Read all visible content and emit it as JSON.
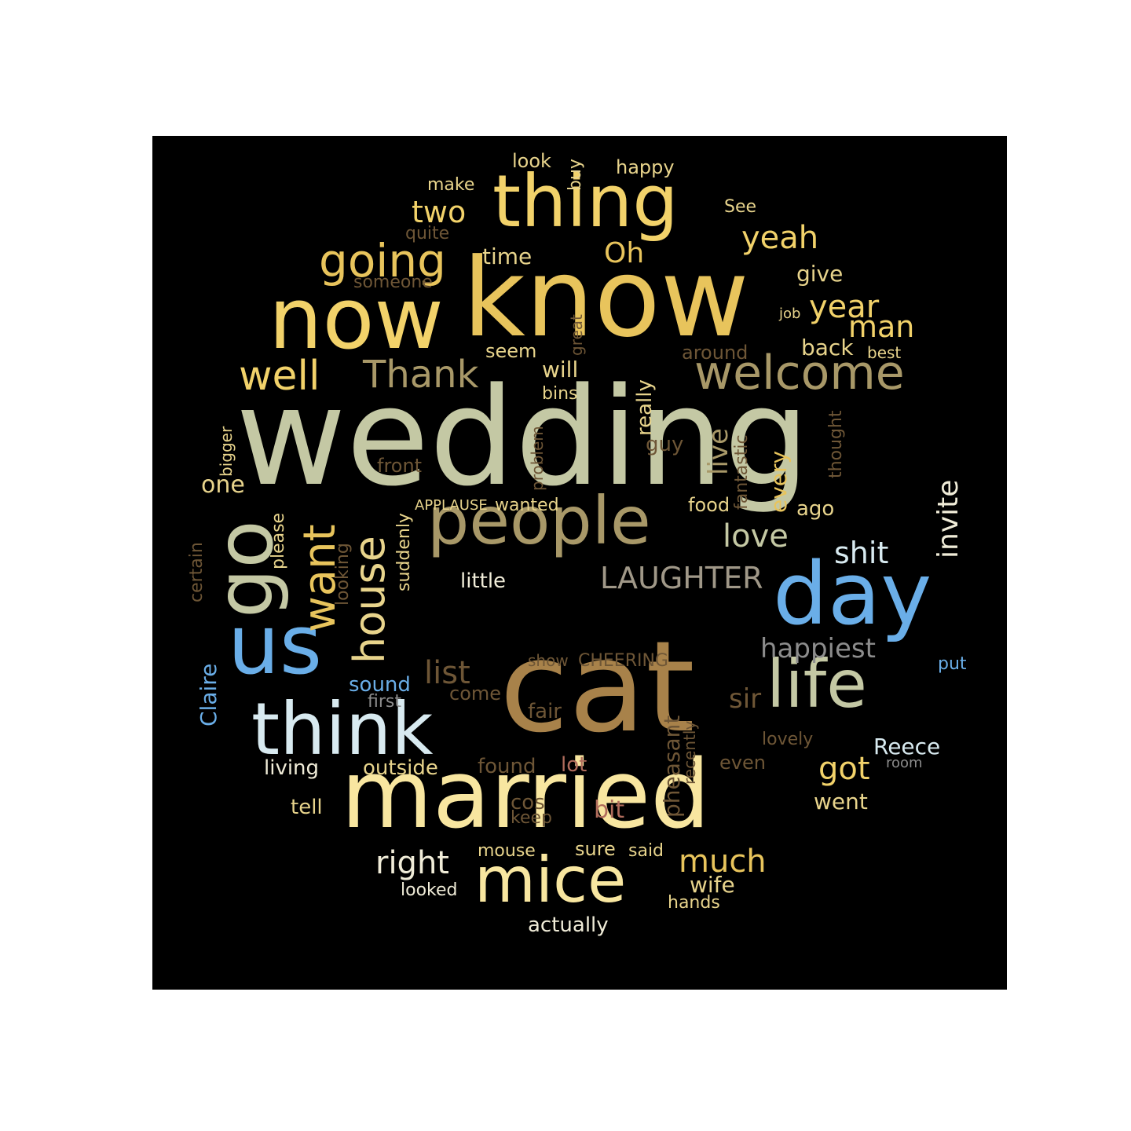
{
  "palette": {
    "sage": "#c4c8a4",
    "gold": "#f2d26a",
    "amber": "#e8c45c",
    "bronze": "#a8824a",
    "khaki": "#a89868",
    "sky": "#6aaee8",
    "ice": "#d8eaf0",
    "cream": "#f8e6a0",
    "taupe": "#a09888",
    "brown": "#6e5636",
    "rose": "#b06c5c",
    "grey": "#8c8c8c",
    "pale": "#f0ecd8",
    "lightgold": "#e8d48c"
  },
  "words": {
    "wedding": "wedding",
    "know": "know",
    "cat": "cat",
    "married": "married",
    "now": "now",
    "thing": "thing",
    "day": "day",
    "people": "people",
    "us": "us",
    "go": "go",
    "think": "think",
    "life": "life",
    "mice": "mice",
    "welcome": "welcome",
    "going": "going",
    "well": "well",
    "thank": "Thank",
    "want": "want",
    "house": "house",
    "two": "two",
    "oh": "Oh",
    "yeah": "yeah",
    "year": "year",
    "man": "man",
    "love": "love",
    "laughter": "LAUGHTER",
    "shit": "shit",
    "invite": "invite",
    "happiest": "happiest",
    "list": "list",
    "got": "got",
    "much": "much",
    "right": "right",
    "sir": "sir",
    "reece": "Reece",
    "claire": "Claire",
    "look": "look",
    "buy": "buy",
    "happy": "happy",
    "make": "make",
    "see": "See",
    "quite": "quite",
    "time": "time",
    "someone": "someone",
    "give": "give",
    "job": "job",
    "great": "great",
    "seem": "seem",
    "around": "around",
    "back": "back",
    "best": "best",
    "will": "will",
    "bins": "bins",
    "bigger": "bigger",
    "one": "one",
    "front": "front",
    "problem": "problem",
    "really": "really",
    "guy": "guy",
    "live": "live",
    "fantastic": "fantastic",
    "every": "every",
    "thought": "thought",
    "applause": "APPLAUSE",
    "wanted": "wanted",
    "food": "food",
    "ago": "ago",
    "certain": "certain",
    "please": "please",
    "looking": "looking",
    "suddenly": "suddenly",
    "little": "little",
    "show": "show",
    "cheering": "CHEERING",
    "put": "put",
    "sound": "sound",
    "first": "first",
    "come": "come",
    "fair": "fair",
    "pheasant": "pheasant",
    "recently": "recently",
    "lovely": "lovely",
    "even": "even",
    "room": "room",
    "living": "living",
    "outside": "outside",
    "found": "found",
    "lot": "lot",
    "tell": "tell",
    "cos": "cos",
    "keep": "keep",
    "bit": "bit",
    "went": "went",
    "mouse": "mouse",
    "sure": "sure",
    "said": "said",
    "looked": "looked",
    "wife": "wife",
    "hands": "hands",
    "actually": "actually"
  }
}
